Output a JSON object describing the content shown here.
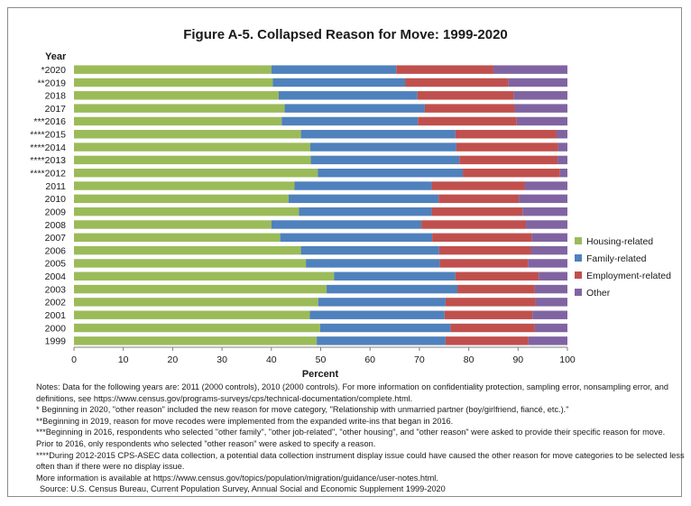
{
  "chart_data": {
    "type": "bar",
    "orientation": "horizontal",
    "stacked": true,
    "title": "Figure A-5. Collapsed Reason for Move: 1999-2020",
    "xlabel": "Percent",
    "ylabel": "Year",
    "xlim": [
      0,
      100
    ],
    "xticks": [
      0,
      10,
      20,
      30,
      40,
      50,
      60,
      70,
      80,
      90,
      100
    ],
    "grid": false,
    "legend_position": "right",
    "categories": [
      "*2020",
      "**2019",
      "2018",
      "2017",
      "***2016",
      "****2015",
      "****2014",
      "****2013",
      "****2012",
      "2011",
      "2010",
      "2009",
      "2008",
      "2007",
      "2006",
      "2005",
      "2004",
      "2003",
      "2002",
      "2001",
      "2000",
      "1999"
    ],
    "series": [
      {
        "name": "Housing-related",
        "color": "#9bbb59",
        "values": [
          40.0,
          40.3,
          41.5,
          42.7,
          42.1,
          46.0,
          47.9,
          48.0,
          49.4,
          44.7,
          43.5,
          45.6,
          40.0,
          41.8,
          46.0,
          47.0,
          52.7,
          51.2,
          49.5,
          47.8,
          49.9,
          49.2
        ]
      },
      {
        "name": "Family-related",
        "color": "#4f81bd",
        "values": [
          25.3,
          26.8,
          28.1,
          28.4,
          27.6,
          31.3,
          29.6,
          30.1,
          29.4,
          27.8,
          30.4,
          26.9,
          30.4,
          30.8,
          28.0,
          27.1,
          24.6,
          26.5,
          25.8,
          27.3,
          26.4,
          26.1
        ]
      },
      {
        "name": "Employment-related",
        "color": "#c0504d",
        "values": [
          19.7,
          20.9,
          19.5,
          18.2,
          20.0,
          20.5,
          20.6,
          19.9,
          19.7,
          18.9,
          16.3,
          18.4,
          21.2,
          20.2,
          18.6,
          17.9,
          16.9,
          15.7,
          18.2,
          17.8,
          17.1,
          16.8
        ]
      },
      {
        "name": "Other",
        "color": "#8064a2",
        "values": [
          15.0,
          12.0,
          10.9,
          10.7,
          10.3,
          2.2,
          1.9,
          2.0,
          1.5,
          8.6,
          9.8,
          9.1,
          8.4,
          7.2,
          7.4,
          8.0,
          5.8,
          6.6,
          6.5,
          7.1,
          6.6,
          7.9
        ]
      }
    ]
  },
  "notes": [
    "Notes: Data for the following years are: 2011 (2000 controls), 2010 (2000 controls). For more information on confidentiality protection, sampling error, nonsampling error, and",
    "definitions, see https://www.census.gov/programs-surveys/cps/technical-documentation/complete.html.",
    "* Beginning in 2020, \"other reason\" included the new reason for move category, \"Relationship with unmarried partner (boy/girlfriend, fiancé, etc.).\"",
    "**Beginning in 2019, reason for move recodes were implemented from the expanded write-ins that began in 2016.",
    "***Beginning in 2016, respondents who selected \"other family\", \"other job-related\", \"other housing\", and \"other reason\" were asked to provide their specific reason for move.",
    "Prior to 2016, only respondents who selected \"other reason\" were asked to specify a reason.",
    "****During 2012-2015 CPS-ASEC data collection, a potential data collection instrument display issue could have caused the other reason for move categories to be selected less",
    "often than if there were no display issue.",
    "More information is available at https://www.census.gov/topics/population/migration/guidance/user-notes.html."
  ],
  "source": "Source: U.S. Census Bureau, Current Population Survey, Annual Social and Economic Supplement 1999-2020"
}
